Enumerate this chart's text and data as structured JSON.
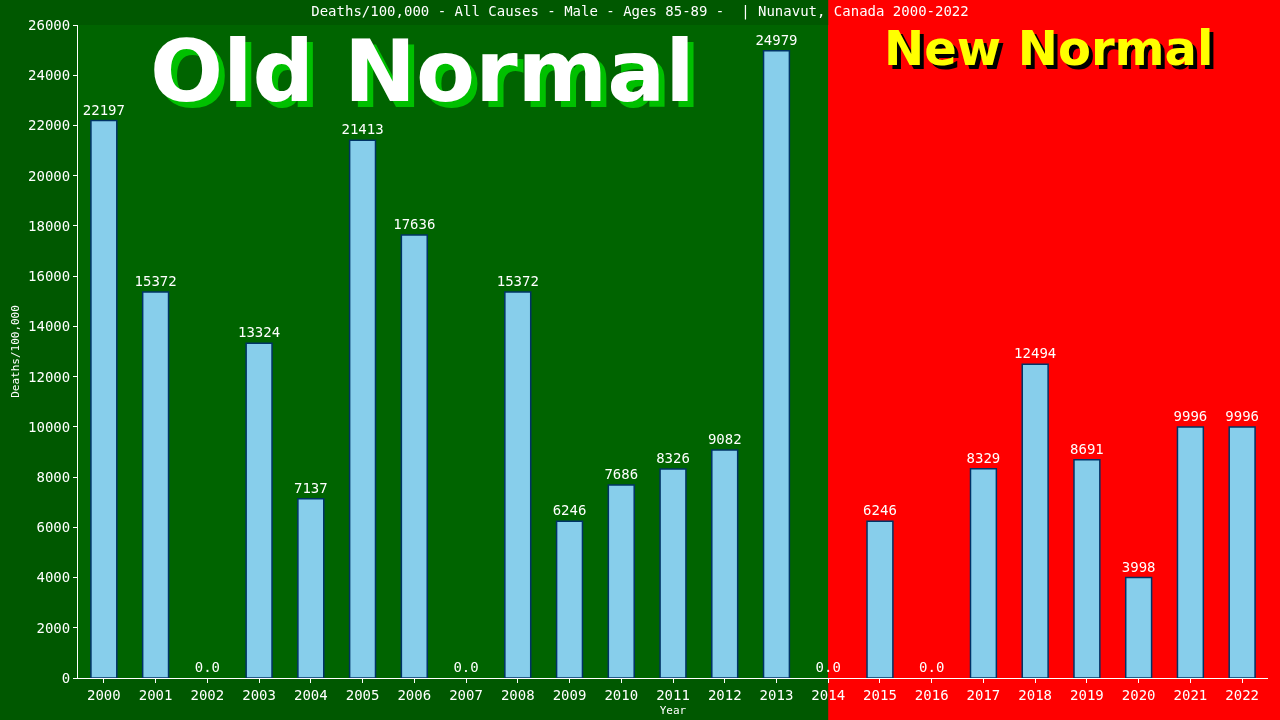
{
  "chart_data": {
    "type": "bar",
    "title": "Deaths/100,000 - All Causes - Male - Ages 85-89 -  | Nunavut, Canada 2000-2022",
    "xlabel": "Year",
    "ylabel": "Deaths/100,000",
    "categories": [
      "2000",
      "2001",
      "2002",
      "2003",
      "2004",
      "2005",
      "2006",
      "2007",
      "2008",
      "2009",
      "2010",
      "2011",
      "2012",
      "2013",
      "2014",
      "2015",
      "2016",
      "2017",
      "2018",
      "2019",
      "2020",
      "2021",
      "2022"
    ],
    "values": [
      22197,
      15372,
      0,
      13324,
      7137,
      21413,
      17636,
      0,
      15372,
      6246,
      7686,
      8326,
      9082,
      24979,
      0,
      6246,
      0,
      8329,
      12494,
      8691,
      3998,
      9996,
      9996
    ],
    "value_labels": [
      "22197",
      "15372",
      "0.0",
      "13324",
      "7137",
      "21413",
      "17636",
      "0.0",
      "15372",
      "6246",
      "7686",
      "8326",
      "9082",
      "24979",
      "0.0",
      "6246",
      "0.0",
      "8329",
      "12494",
      "8691",
      "3998",
      "9996",
      "9996"
    ],
    "color": "#87ceeb",
    "ylim": [
      0,
      26000
    ],
    "yticks": [
      0,
      2000,
      4000,
      6000,
      8000,
      10000,
      12000,
      14000,
      16000,
      18000,
      20000,
      22000,
      24000,
      26000
    ],
    "grid": false,
    "bands": [
      {
        "axis": "x",
        "from": "2000",
        "to": "2014",
        "color": "#006400",
        "label": "Old Normal"
      },
      {
        "axis": "x",
        "from": "2014",
        "to": "2022",
        "color": "#ff0000",
        "label": "New Normal"
      }
    ]
  }
}
